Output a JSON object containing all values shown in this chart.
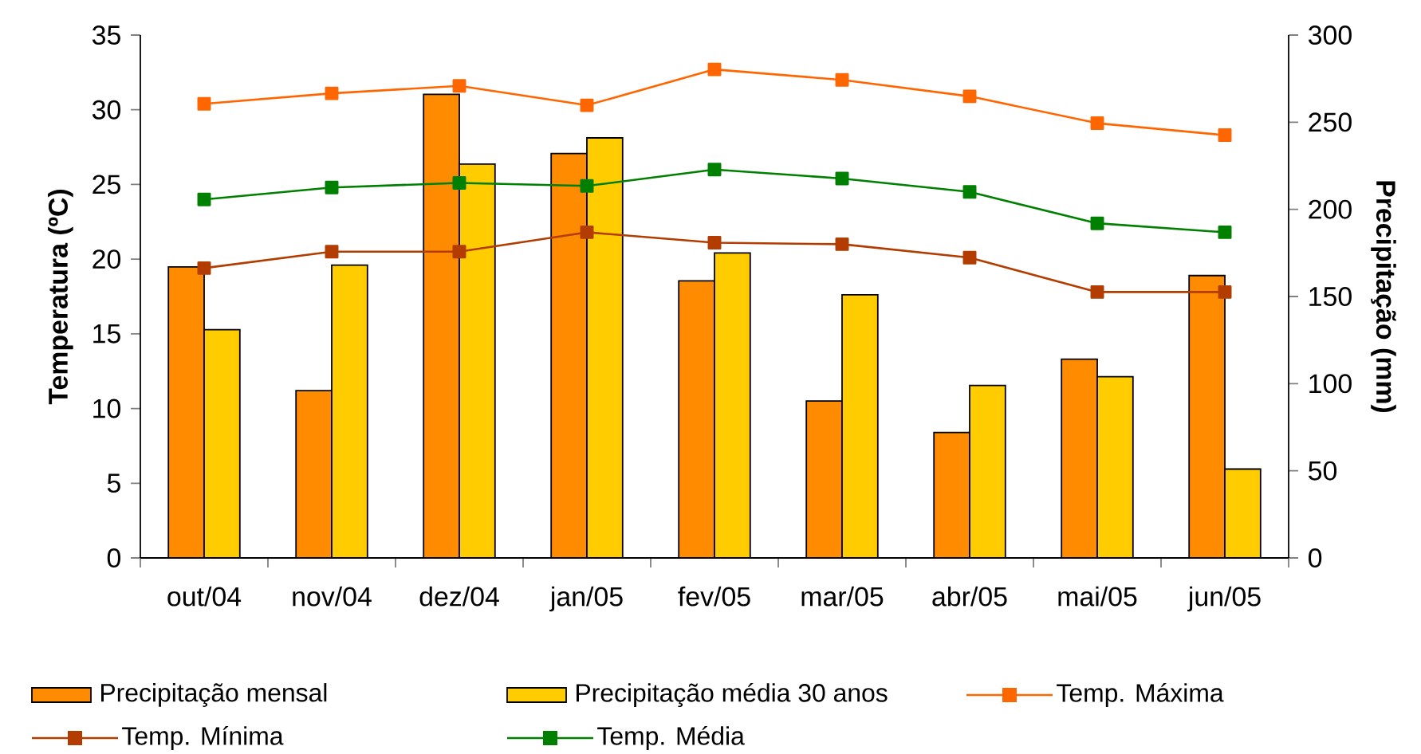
{
  "chart_data": {
    "type": "bar",
    "categories": [
      "out/04",
      "nov/04",
      "dez/04",
      "jan/05",
      "fev/05",
      "mar/05",
      "abr/05",
      "mai/05",
      "jun/05"
    ],
    "ylabel": "Temperatura (ºC)",
    "y2label": "Precipitação (mm)",
    "ylim": [
      0,
      35
    ],
    "yticks": [
      0,
      5,
      10,
      15,
      20,
      25,
      30,
      35
    ],
    "y2lim": [
      0,
      300
    ],
    "y2ticks": [
      0,
      50,
      100,
      150,
      200,
      250,
      300
    ],
    "legend": "bottom",
    "marker": "square",
    "grid": false,
    "series": [
      {
        "name": "Precipitação mensal",
        "axis": "y2",
        "color": "#ff8c00",
        "values": [
          167,
          96,
          266,
          232,
          159,
          90,
          72,
          114,
          162
        ]
      },
      {
        "name": "Precipitação média 30 anos",
        "axis": "y2",
        "color": "#ffcc00",
        "values": [
          131,
          168,
          226,
          241,
          175,
          151,
          99,
          104,
          51
        ]
      },
      {
        "name": "Temp. Máxima",
        "type": "line",
        "color": "#ff6600",
        "values": [
          30.4,
          31.1,
          31.6,
          30.3,
          32.7,
          32.0,
          30.9,
          29.1,
          28.3
        ]
      },
      {
        "name": "Temp. Mínima",
        "type": "line",
        "color": "#b33c00",
        "values": [
          19.4,
          20.5,
          20.5,
          21.8,
          21.1,
          21.0,
          20.1,
          17.8,
          17.8
        ]
      },
      {
        "name": "Temp. Média",
        "type": "line",
        "color": "#008000",
        "values": [
          24.0,
          24.8,
          25.1,
          24.9,
          26.0,
          25.4,
          24.5,
          22.4,
          21.8
        ]
      }
    ]
  }
}
